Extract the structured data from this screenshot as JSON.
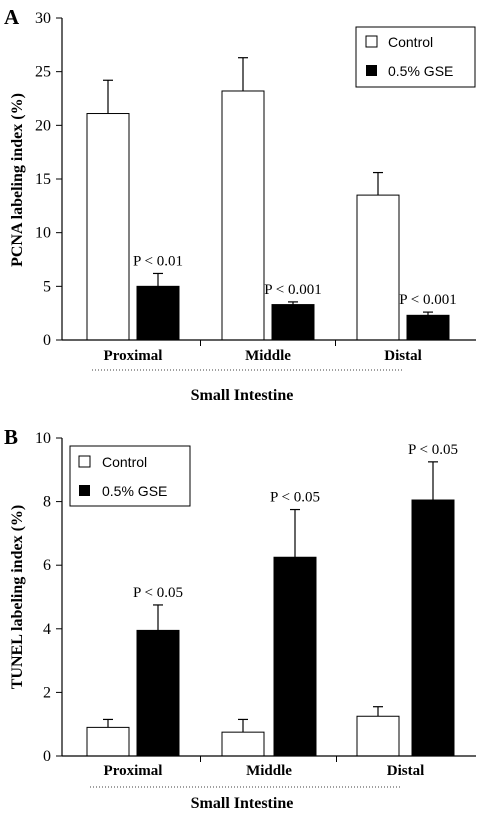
{
  "chart_data": [
    {
      "panel": "A",
      "type": "bar",
      "categories": [
        "Proximal",
        "Middle",
        "Distal"
      ],
      "series": [
        {
          "name": "Control",
          "color": "#ffffff",
          "values": [
            21.1,
            23.2,
            13.5
          ],
          "errors": [
            3.1,
            3.1,
            2.1
          ]
        },
        {
          "name": "0.5% GSE",
          "color": "#000000",
          "values": [
            5.0,
            3.3,
            2.3
          ],
          "errors": [
            1.2,
            0.25,
            0.3
          ]
        }
      ],
      "annotations": [
        "P < 0.01",
        "P < 0.001",
        "P < 0.001"
      ],
      "xlabel": "Small Intestine",
      "ylabel": "PCNA labeling index (%)",
      "ylim": [
        0,
        30
      ],
      "yticks": [
        "0",
        "5",
        "10",
        "15",
        "20",
        "25",
        "30"
      ],
      "legend": "top-right"
    },
    {
      "panel": "B",
      "type": "bar",
      "categories": [
        "Proximal",
        "Middle",
        "Distal"
      ],
      "series": [
        {
          "name": "Control",
          "color": "#ffffff",
          "values": [
            0.9,
            0.75,
            1.25
          ],
          "errors": [
            0.25,
            0.4,
            0.3
          ]
        },
        {
          "name": "0.5% GSE",
          "color": "#000000",
          "values": [
            3.95,
            6.25,
            8.05
          ],
          "errors": [
            0.8,
            1.5,
            1.2
          ]
        }
      ],
      "annotations": [
        "P < 0.05",
        "P < 0.05",
        "P < 0.05"
      ],
      "xlabel": "Small Intestine",
      "ylabel": "TUNEL labeling index (%)",
      "ylim": [
        0,
        10
      ],
      "yticks": [
        "0",
        "2",
        "4",
        "6",
        "8",
        "10"
      ],
      "legend": "top-left"
    }
  ]
}
